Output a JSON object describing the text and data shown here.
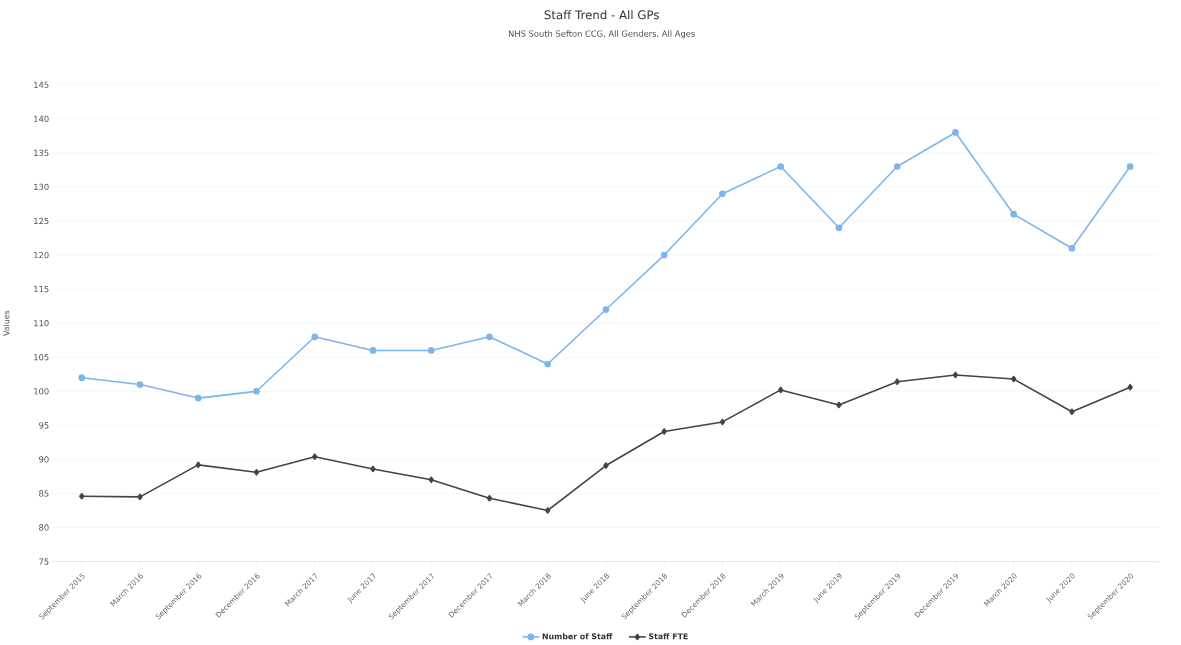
{
  "chart_data": {
    "type": "line",
    "title": "Staff Trend - All GPs",
    "subtitle": "NHS South Sefton CCG, All Genders, All Ages",
    "ylabel": "Values",
    "categories": [
      "September 2015",
      "March 2016",
      "September 2016",
      "December 2016",
      "March 2017",
      "June 2017",
      "September 2017",
      "December 2017",
      "March 2018",
      "June 2018",
      "September 2018",
      "December 2018",
      "March 2019",
      "June 2019",
      "September 2019",
      "December 2019",
      "March 2020",
      "June 2020",
      "September 2020"
    ],
    "series": [
      {
        "name": "Number of Staff",
        "color": "#7cb5ec",
        "marker": "circle",
        "values": [
          102,
          101,
          99,
          100,
          108,
          106,
          106,
          108,
          104,
          112,
          120,
          129,
          133,
          124,
          133,
          138,
          126,
          121,
          133
        ]
      },
      {
        "name": "Staff FTE",
        "color": "#434348",
        "marker": "diamond",
        "values": [
          84.6,
          84.5,
          89.2,
          88.1,
          90.4,
          88.6,
          87.0,
          84.3,
          82.5,
          89.1,
          94.1,
          95.5,
          100.2,
          98.0,
          101.4,
          102.4,
          101.8,
          97.0,
          100.6
        ]
      }
    ],
    "ylim": [
      75,
      145
    ],
    "yticks": [
      75,
      80,
      85,
      90,
      95,
      100,
      105,
      110,
      115,
      120,
      125,
      130,
      135,
      140,
      145
    ],
    "grid": "y",
    "legend": "bottom",
    "line_style": "solid"
  }
}
